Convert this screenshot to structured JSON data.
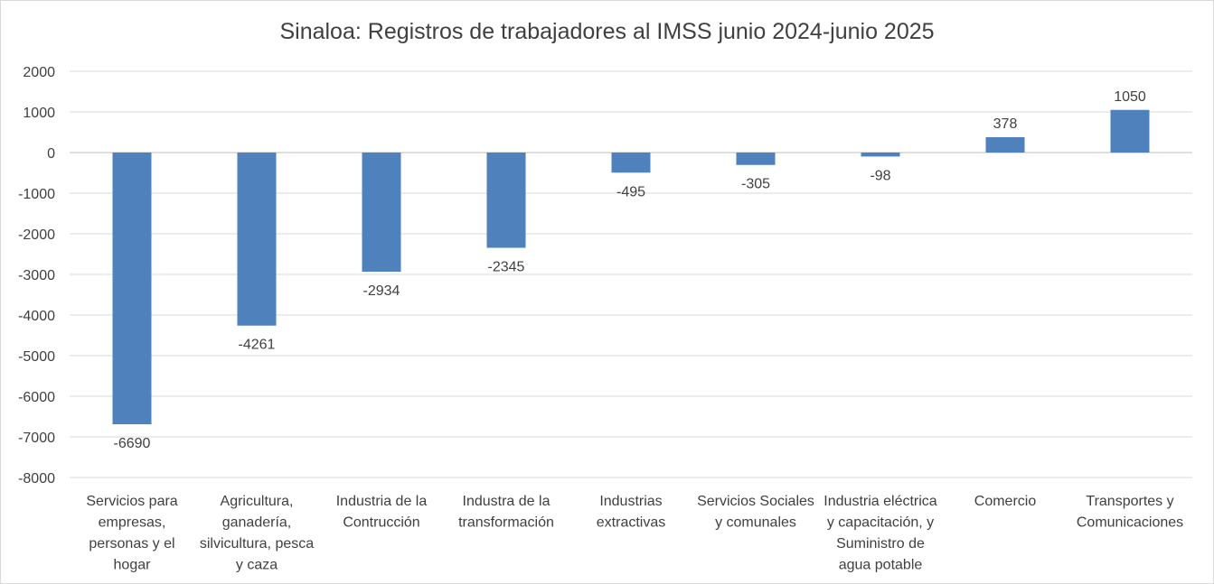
{
  "chart_data": {
    "type": "bar",
    "title": "Sinaloa: Registros de trabajadores al IMSS junio 2024-junio 2025",
    "xlabel": "",
    "ylabel": "",
    "ylim": [
      -8000,
      2000
    ],
    "yticks": [
      2000,
      1000,
      0,
      -1000,
      -2000,
      -3000,
      -4000,
      -5000,
      -6000,
      -7000,
      -8000
    ],
    "grid": true,
    "legend": "none",
    "bar_color": "#4f81bd",
    "categories": [
      [
        "Servicios para",
        "empresas,",
        "personas y el",
        "hogar"
      ],
      [
        "Agricultura,",
        "ganadería,",
        "silvicultura, pesca",
        "y caza"
      ],
      [
        "Industria de la",
        "Contrucción"
      ],
      [
        "Industra de la",
        "transformación"
      ],
      [
        "Industrias",
        "extractivas"
      ],
      [
        "Servicios Sociales",
        "y comunales"
      ],
      [
        "Industria eléctrica",
        "y capacitación, y",
        "Suministro de",
        "agua potable"
      ],
      [
        "Comercio"
      ],
      [
        "Transportes y",
        "Comunicaciones"
      ]
    ],
    "values": [
      -6690,
      -4261,
      -2934,
      -2345,
      -495,
      -305,
      -98,
      378,
      1050
    ],
    "data_labels": [
      "-6690",
      "-4261",
      "-2934",
      "-2345",
      "-495",
      "-305",
      "-98",
      "378",
      "1050"
    ]
  }
}
